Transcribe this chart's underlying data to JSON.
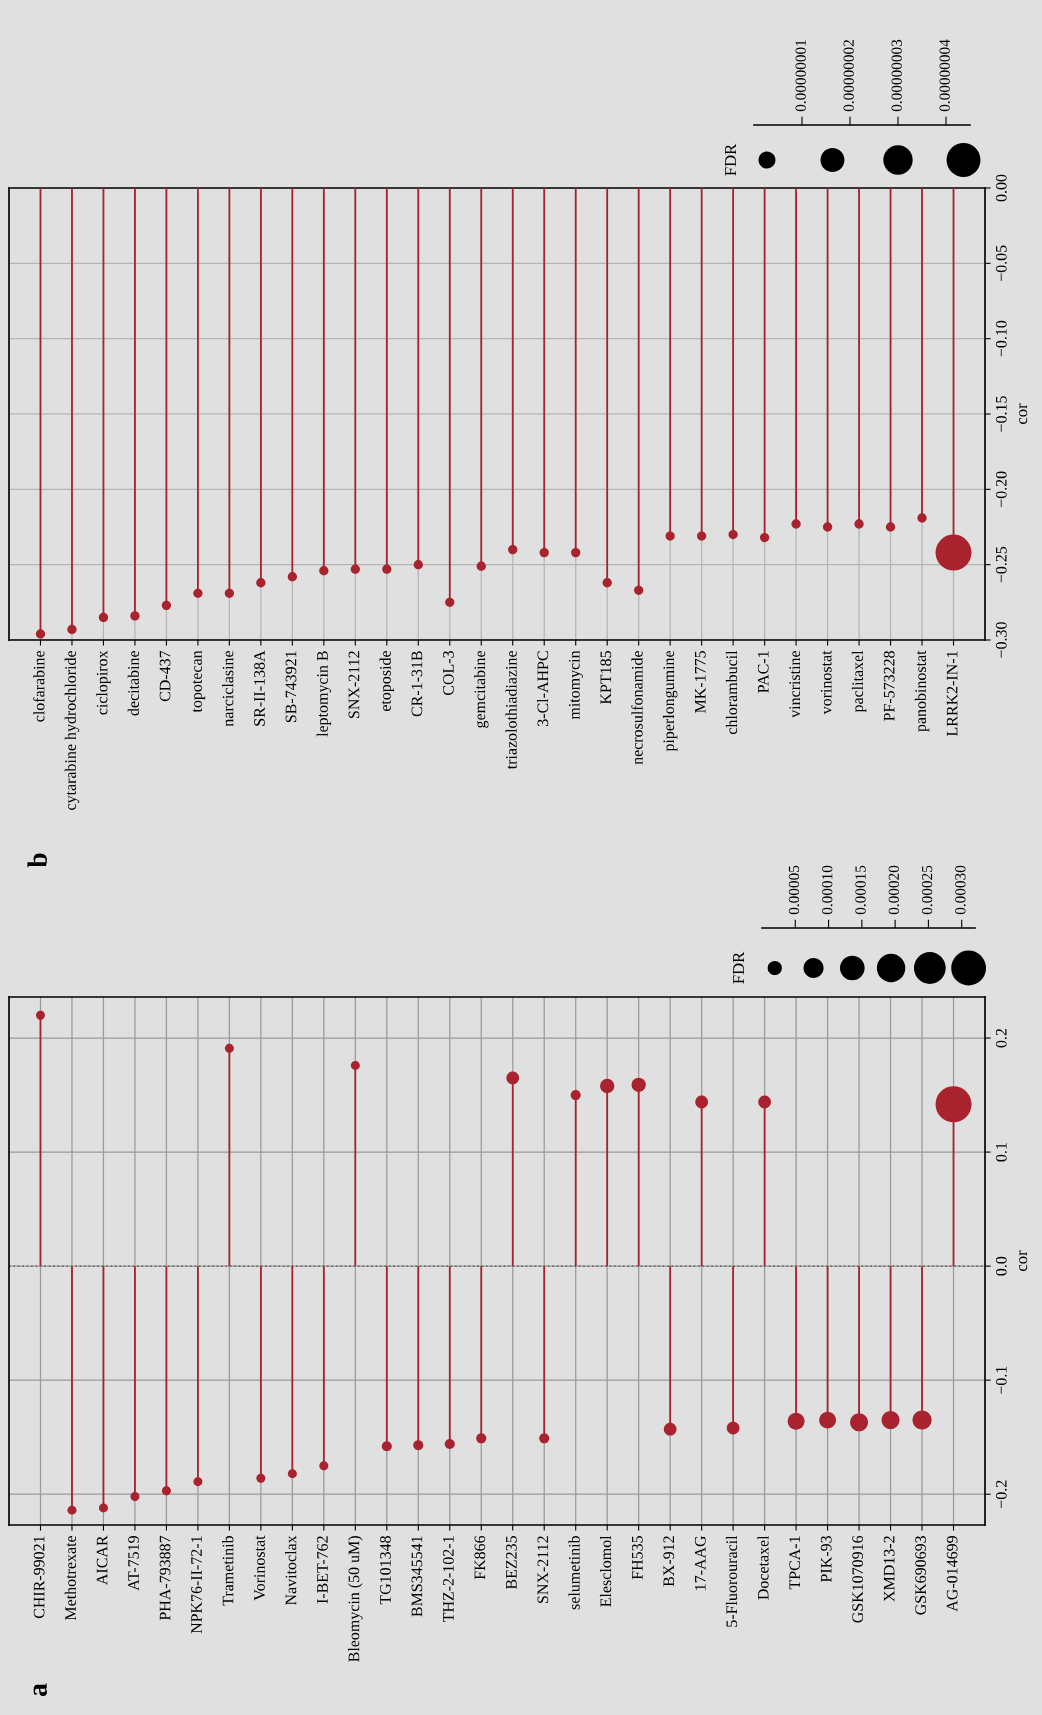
{
  "chart_data": [
    {
      "type": "lollipop",
      "title": "a",
      "ylabel": "cor",
      "legend_title": "FDR",
      "color": "#a8232d",
      "marker": "circle",
      "grid": true,
      "categories": [
        "CHIR-99021",
        "Methotrexate",
        "AICAR",
        "AT-7519",
        "PHA-793887",
        "NPK76-II-72-1",
        "Trametinib",
        "Vorinostat",
        "Navitoclax",
        "I-BET-762",
        "Bleomycin (50 uM)",
        "TG101348",
        "BMS345541",
        "THZ-2-102-1",
        "FK866",
        "BEZ235",
        "SNX-2112",
        "selumetinib",
        "Elesclomol",
        "FH535",
        "BX-912",
        "17-AAG",
        "5-Fluorouracil",
        "Docetaxel",
        "TPCA-1",
        "PIK-93",
        "GSK1070916",
        "XMD13-2",
        "GSK690693",
        "AG-014699"
      ],
      "values": [
        0.22,
        -0.214,
        -0.212,
        -0.202,
        -0.197,
        -0.189,
        0.191,
        -0.186,
        -0.182,
        -0.175,
        0.176,
        -0.158,
        -0.157,
        -0.156,
        -0.151,
        0.165,
        -0.151,
        0.15,
        0.158,
        0.159,
        -0.143,
        0.144,
        -0.142,
        0.144,
        -0.136,
        -0.135,
        -0.137,
        -0.135,
        -0.135,
        0.142
      ],
      "sizes": [
        2e-05,
        2e-05,
        2e-05,
        2e-05,
        2e-05,
        2e-05,
        2e-05,
        2e-05,
        2e-05,
        2e-05,
        2e-05,
        2.5e-05,
        2.5e-05,
        2.5e-05,
        2.5e-05,
        4e-05,
        2.5e-05,
        2.5e-05,
        5e-05,
        5e-05,
        4e-05,
        4e-05,
        4e-05,
        4e-05,
        7e-05,
        7e-05,
        8e-05,
        8e-05,
        9e-05,
        0.00032
      ],
      "size_legend": [
        {
          "value": 5e-05,
          "label": "0.00005"
        },
        {
          "value": 0.0001,
          "label": "0.00010"
        },
        {
          "value": 0.00015,
          "label": "0.00015"
        },
        {
          "value": 0.0002,
          "label": "0.00020"
        },
        {
          "value": 0.00025,
          "label": "0.00025"
        },
        {
          "value": 0.0003,
          "label": "0.00030"
        }
      ],
      "ylim": [
        -0.227,
        0.236
      ],
      "yticks": [
        {
          "value": -0.2,
          "label": "−0.2"
        },
        {
          "value": -0.1,
          "label": "−0.1"
        },
        {
          "value": 0,
          "label": "0.0"
        },
        {
          "value": 0.1,
          "label": "0.1"
        },
        {
          "value": 0.2,
          "label": "0.2"
        }
      ],
      "ref_lines": [
        {
          "axis": "y",
          "value": 0,
          "line_style": "dotted",
          "color": "#707070"
        }
      ]
    },
    {
      "type": "lollipop",
      "title": "b",
      "ylabel": "cor",
      "legend_title": "FDR",
      "color": "#a8232d",
      "marker": "circle",
      "grid": true,
      "categories": [
        "clofarabine",
        "cytarabine hydrochloride",
        "ciclopirox",
        "decitabine",
        "CD-437",
        "topotecan",
        "narciclasine",
        "SR-II-138A",
        "SB-743921",
        "leptomycin B",
        "SNX-2112",
        "etoposide",
        "CR-1-31B",
        "COL-3",
        "gemcitabine",
        "triazolothiadiazine",
        "3-Cl-AHPC",
        "mitomycin",
        "KPT185",
        "necrosulfonamide",
        "piperlongumine",
        "MK-1775",
        "chlorambucil",
        "PAC-1",
        "vincristine",
        "vorinostat",
        "paclitaxel",
        "PF-573228",
        "panobinostat",
        "LRRK2-IN-1"
      ],
      "values": [
        -0.296,
        -0.293,
        -0.285,
        -0.284,
        -0.277,
        -0.269,
        -0.269,
        -0.262,
        -0.258,
        -0.254,
        -0.253,
        -0.253,
        -0.25,
        -0.275,
        -0.251,
        -0.24,
        -0.242,
        -0.242,
        -0.262,
        -0.267,
        -0.231,
        -0.231,
        -0.23,
        -0.232,
        -0.223,
        -0.225,
        -0.223,
        -0.225,
        -0.219,
        -0.242
      ],
      "sizes": [
        3e-09,
        3e-09,
        3e-09,
        3e-09,
        3e-09,
        3e-09,
        3e-09,
        3e-09,
        3e-09,
        3e-09,
        3e-09,
        3e-09,
        3e-09,
        3e-09,
        3e-09,
        3e-09,
        3e-09,
        3e-09,
        3e-09,
        3e-09,
        3e-09,
        3e-09,
        3e-09,
        3e-09,
        3e-09,
        3e-09,
        3e-09,
        3e-09,
        3e-09,
        4.5e-08
      ],
      "size_legend": [
        {
          "value": 1e-08,
          "label": "0.00000001"
        },
        {
          "value": 2e-08,
          "label": "0.00000002"
        },
        {
          "value": 3e-08,
          "label": "0.00000003"
        },
        {
          "value": 4e-08,
          "label": "0.00000004"
        }
      ],
      "ylim": [
        -0.3,
        0.0
      ],
      "yticks": [
        {
          "value": -0.3,
          "label": "−0.30"
        },
        {
          "value": -0.25,
          "label": "−0.25"
        },
        {
          "value": -0.2,
          "label": "−0.20"
        },
        {
          "value": -0.15,
          "label": "−0.15"
        },
        {
          "value": -0.1,
          "label": "−0.10"
        },
        {
          "value": -0.05,
          "label": "−0.05"
        },
        {
          "value": 0,
          "label": "0.00"
        }
      ]
    }
  ]
}
